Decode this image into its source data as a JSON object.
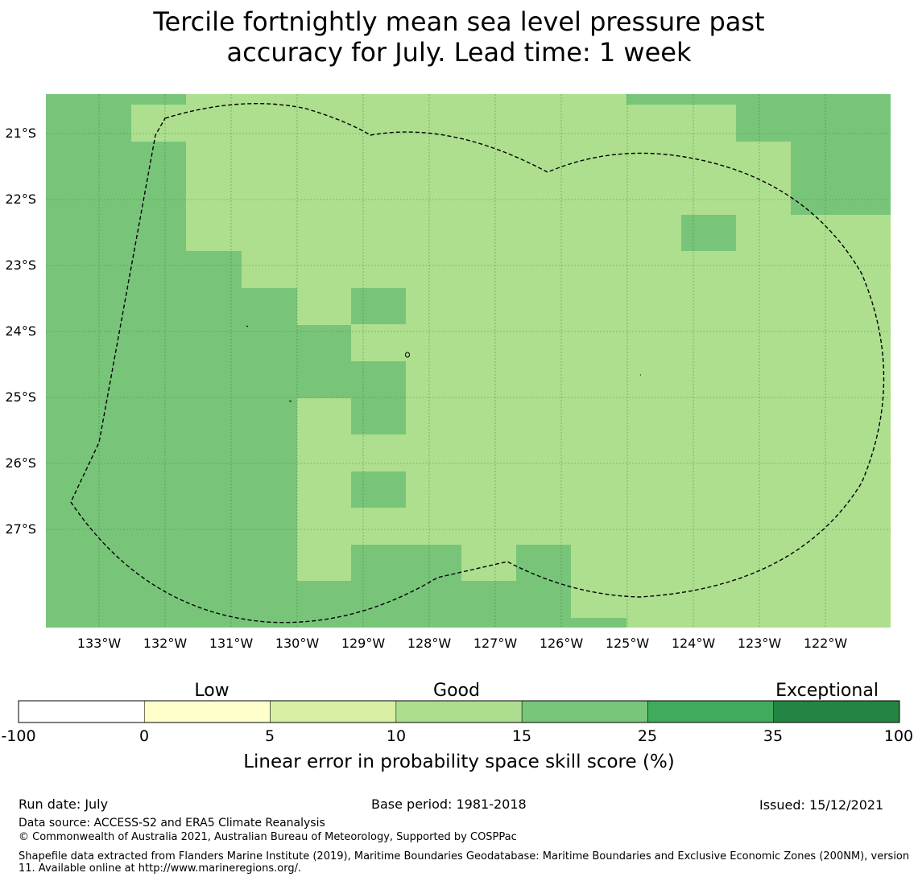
{
  "title_line1": "Tercile fortnightly mean sea level pressure past",
  "title_line2": "accuracy for July. Lead time: 1 week",
  "map": {
    "lon_labels": [
      "133°W",
      "132°W",
      "131°W",
      "130°W",
      "129°W",
      "128°W",
      "127°W",
      "126°W",
      "125°W",
      "124°W",
      "123°W",
      "122°W"
    ],
    "lat_labels": [
      "21°S",
      "22°S",
      "23°S",
      "24°S",
      "25°S",
      "26°S",
      "27°S"
    ],
    "colors": {
      "good_light": "#addf8e",
      "good_dark": "#78c57a"
    }
  },
  "colorbar": {
    "categories": [
      "Low",
      "Good",
      "Exceptional"
    ],
    "ticks": [
      "-100",
      "0",
      "5",
      "10",
      "15",
      "25",
      "35",
      "100"
    ],
    "colors": [
      "#ffffff",
      "#ffffcc",
      "#d9f0a3",
      "#addd8e",
      "#78c679",
      "#41ab5d",
      "#238443"
    ],
    "label": "Linear error in probability space skill score (%)"
  },
  "footer": {
    "run_date": "Run date: July",
    "base_period": "Base period: 1981-2018",
    "issued": "Issued: 15/12/2021",
    "data_source": "Data source: ACCESS-S2 and ERA5 Climate Reanalysis",
    "copyright": "© Commonwealth of Australia 2021, Australian Bureau of Meteorology, Supported by COSPPac",
    "shapefile": "Shapefile data extracted from Flanders Marine Institute (2019), Maritime Boundaries Geodatabase: Maritime Boundaries and Exclusive Economic Zones (200NM), version 11. Available online at http://www.marineregions.org/."
  }
}
